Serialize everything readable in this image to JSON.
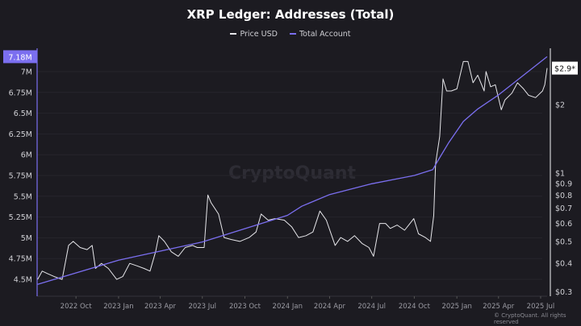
{
  "chart_data": {
    "type": "line",
    "title": "XRP Ledger: Addresses (Total)",
    "legend_position": "top",
    "grid": true,
    "watermark": "CryptoQuant",
    "copyright": "© CryptoQuant. All rights reserved",
    "x_ticks": [
      {
        "label": "2022 Oct",
        "date": "2022-10-01"
      },
      {
        "label": "2023 Jan",
        "date": "2023-01-01"
      },
      {
        "label": "2023 Apr",
        "date": "2023-04-01"
      },
      {
        "label": "2023 Jul",
        "date": "2023-07-01"
      },
      {
        "label": "2023 Oct",
        "date": "2023-10-01"
      },
      {
        "label": "2024 Jan",
        "date": "2024-01-01"
      },
      {
        "label": "2024 Apr",
        "date": "2024-04-01"
      },
      {
        "label": "2024 Jul",
        "date": "2024-07-01"
      },
      {
        "label": "2024 Oct",
        "date": "2024-10-01"
      },
      {
        "label": "2025 Jan",
        "date": "2025-01-01"
      },
      {
        "label": "2025 Apr",
        "date": "2025-04-01"
      },
      {
        "label": "2025 Jul",
        "date": "2025-07-01"
      }
    ],
    "xlim": [
      "2022-07-09",
      "2025-07-15"
    ],
    "left_axis": {
      "ylim": [
        4.42,
        7.2
      ],
      "ticks": [
        {
          "label": "4.5M",
          "v": 4.5
        },
        {
          "label": "4.75M",
          "v": 4.75
        },
        {
          "label": "5M",
          "v": 5
        },
        {
          "label": "5.25M",
          "v": 5.25
        },
        {
          "label": "5.5M",
          "v": 5.5
        },
        {
          "label": "5.75M",
          "v": 5.75
        },
        {
          "label": "6M",
          "v": 6
        },
        {
          "label": "6.25M",
          "v": 6.25
        },
        {
          "label": "6.5M",
          "v": 6.5
        },
        {
          "label": "6.75M",
          "v": 6.75
        },
        {
          "label": "7M",
          "v": 7
        }
      ],
      "current_label": "7.18M",
      "current_value": 7.18,
      "color": "#7b6ff0"
    },
    "right_axis": {
      "scale": "log",
      "ticks": [
        {
          "label": "$0.3",
          "v": 0.3
        },
        {
          "label": "$0.4",
          "v": 0.4
        },
        {
          "label": "$0.5",
          "v": 0.5
        },
        {
          "label": "$0.6",
          "v": 0.6
        },
        {
          "label": "$0.7",
          "v": 0.7
        },
        {
          "label": "$0.8",
          "v": 0.8
        },
        {
          "label": "$0.9",
          "v": 0.9
        },
        {
          "label": "$1",
          "v": 1
        },
        {
          "label": "$2",
          "v": 2
        }
      ],
      "current_label": "$2.9*",
      "current_value": 2.9,
      "color": "#e6e6ea"
    },
    "series": [
      {
        "name": "Price USD",
        "axis": "right",
        "color": "#e6e6ea",
        "points": [
          [
            "2022-07-10",
            0.34
          ],
          [
            "2022-07-20",
            0.37
          ],
          [
            "2022-08-01",
            0.36
          ],
          [
            "2022-08-15",
            0.35
          ],
          [
            "2022-09-01",
            0.34
          ],
          [
            "2022-09-15",
            0.48
          ],
          [
            "2022-09-25",
            0.5
          ],
          [
            "2022-10-10",
            0.47
          ],
          [
            "2022-10-25",
            0.46
          ],
          [
            "2022-11-05",
            0.48
          ],
          [
            "2022-11-12",
            0.38
          ],
          [
            "2022-11-25",
            0.4
          ],
          [
            "2022-12-10",
            0.38
          ],
          [
            "2022-12-28",
            0.34
          ],
          [
            "2023-01-10",
            0.35
          ],
          [
            "2023-01-25",
            0.4
          ],
          [
            "2023-02-10",
            0.39
          ],
          [
            "2023-02-25",
            0.38
          ],
          [
            "2023-03-10",
            0.37
          ],
          [
            "2023-03-22",
            0.45
          ],
          [
            "2023-03-29",
            0.53
          ],
          [
            "2023-04-10",
            0.5
          ],
          [
            "2023-04-25",
            0.45
          ],
          [
            "2023-05-10",
            0.43
          ],
          [
            "2023-05-25",
            0.47
          ],
          [
            "2023-06-10",
            0.48
          ],
          [
            "2023-06-20",
            0.47
          ],
          [
            "2023-07-05",
            0.47
          ],
          [
            "2023-07-13",
            0.8
          ],
          [
            "2023-07-20",
            0.74
          ],
          [
            "2023-08-05",
            0.66
          ],
          [
            "2023-08-17",
            0.52
          ],
          [
            "2023-09-01",
            0.51
          ],
          [
            "2023-09-20",
            0.5
          ],
          [
            "2023-10-10",
            0.52
          ],
          [
            "2023-10-25",
            0.55
          ],
          [
            "2023-11-05",
            0.66
          ],
          [
            "2023-11-20",
            0.62
          ],
          [
            "2023-12-05",
            0.63
          ],
          [
            "2023-12-25",
            0.62
          ],
          [
            "2024-01-10",
            0.58
          ],
          [
            "2024-01-25",
            0.52
          ],
          [
            "2024-02-10",
            0.53
          ],
          [
            "2024-02-25",
            0.55
          ],
          [
            "2024-03-11",
            0.68
          ],
          [
            "2024-03-25",
            0.62
          ],
          [
            "2024-04-13",
            0.48
          ],
          [
            "2024-04-25",
            0.52
          ],
          [
            "2024-05-10",
            0.5
          ],
          [
            "2024-05-25",
            0.53
          ],
          [
            "2024-06-10",
            0.49
          ],
          [
            "2024-06-25",
            0.47
          ],
          [
            "2024-07-05",
            0.43
          ],
          [
            "2024-07-18",
            0.6
          ],
          [
            "2024-07-31",
            0.6
          ],
          [
            "2024-08-10",
            0.57
          ],
          [
            "2024-08-25",
            0.59
          ],
          [
            "2024-09-10",
            0.56
          ],
          [
            "2024-09-30",
            0.63
          ],
          [
            "2024-10-10",
            0.54
          ],
          [
            "2024-10-25",
            0.52
          ],
          [
            "2024-11-05",
            0.5
          ],
          [
            "2024-11-12",
            0.65
          ],
          [
            "2024-11-16",
            1.1
          ],
          [
            "2024-11-25",
            1.45
          ],
          [
            "2024-12-02",
            2.6
          ],
          [
            "2024-12-10",
            2.3
          ],
          [
            "2024-12-20",
            2.3
          ],
          [
            "2025-01-01",
            2.35
          ],
          [
            "2025-01-15",
            3.1
          ],
          [
            "2025-01-25",
            3.1
          ],
          [
            "2025-02-05",
            2.5
          ],
          [
            "2025-02-15",
            2.7
          ],
          [
            "2025-03-01",
            2.3
          ],
          [
            "2025-03-05",
            2.8
          ],
          [
            "2025-03-15",
            2.4
          ],
          [
            "2025-03-25",
            2.45
          ],
          [
            "2025-04-07",
            1.9
          ],
          [
            "2025-04-15",
            2.1
          ],
          [
            "2025-04-30",
            2.25
          ],
          [
            "2025-05-12",
            2.5
          ],
          [
            "2025-05-25",
            2.35
          ],
          [
            "2025-06-05",
            2.2
          ],
          [
            "2025-06-20",
            2.15
          ],
          [
            "2025-07-05",
            2.3
          ],
          [
            "2025-07-10",
            2.45
          ],
          [
            "2025-07-15",
            2.9
          ]
        ]
      },
      {
        "name": "Total Account",
        "axis": "left",
        "color": "#7b6ff0",
        "points": [
          [
            "2022-07-10",
            4.44
          ],
          [
            "2023-01-01",
            4.73
          ],
          [
            "2023-07-01",
            4.95
          ],
          [
            "2024-01-01",
            5.27
          ],
          [
            "2024-02-01",
            5.38
          ],
          [
            "2024-04-01",
            5.52
          ],
          [
            "2024-07-01",
            5.65
          ],
          [
            "2024-10-01",
            5.75
          ],
          [
            "2024-11-10",
            5.82
          ],
          [
            "2024-11-20",
            5.92
          ],
          [
            "2024-12-15",
            6.15
          ],
          [
            "2025-01-15",
            6.4
          ],
          [
            "2025-02-15",
            6.55
          ],
          [
            "2025-04-01",
            6.72
          ],
          [
            "2025-07-15",
            7.18
          ]
        ]
      }
    ]
  }
}
